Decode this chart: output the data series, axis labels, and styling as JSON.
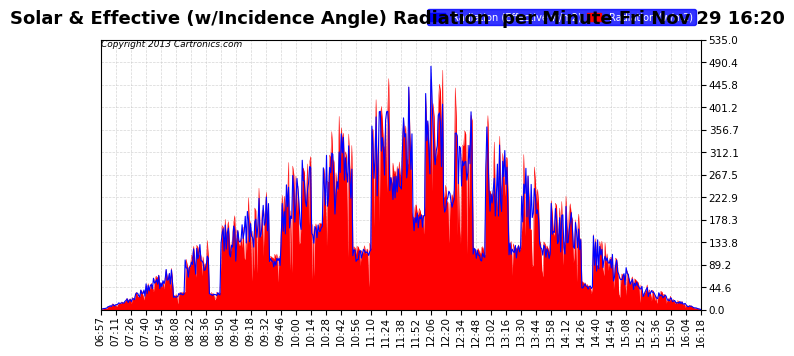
{
  "title": "Solar & Effective (w/Incidence Angle) Radiation  per Minute Fri Nov 29 16:20",
  "copyright": "Copyright 2013 Cartronics.com",
  "legend_blue": "Radiation (Effective w/m2)",
  "legend_red": "Radiation (w/m2)",
  "ylabel_right": "",
  "yticks": [
    0.0,
    44.6,
    89.2,
    133.8,
    178.3,
    222.9,
    267.5,
    312.1,
    356.7,
    401.2,
    445.8,
    490.4,
    535.0
  ],
  "ymax": 535.0,
  "ymin": 0.0,
  "bg_color": "#ffffff",
  "plot_bg_color": "#ffffff",
  "grid_color": "#cccccc",
  "red_color": "#ff0000",
  "blue_color": "#0000ff",
  "title_fontsize": 13,
  "tick_fontsize": 7.5,
  "x_labels": [
    "06:57",
    "07:11",
    "07:26",
    "07:40",
    "07:54",
    "08:08",
    "08:22",
    "08:36",
    "08:50",
    "09:04",
    "09:18",
    "09:32",
    "09:46",
    "10:00",
    "10:14",
    "10:28",
    "10:42",
    "10:56",
    "11:10",
    "11:24",
    "11:38",
    "11:52",
    "12:06",
    "12:20",
    "12:34",
    "12:48",
    "13:02",
    "13:16",
    "13:30",
    "13:44",
    "13:58",
    "14:12",
    "14:26",
    "14:40",
    "14:54",
    "15:08",
    "15:22",
    "15:36",
    "15:50",
    "16:04",
    "16:18"
  ]
}
